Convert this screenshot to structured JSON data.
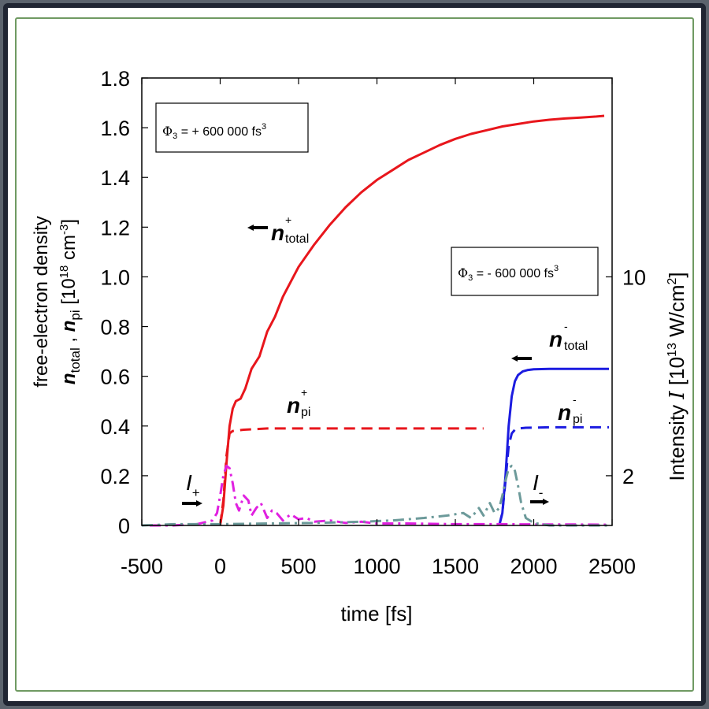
{
  "chart_data": {
    "type": "line",
    "xlabel": "time [fs]",
    "ylabel_left_lines": [
      "free-electron density",
      "n",
      "total",
      " , ",
      "n",
      "pi",
      " [10",
      "18",
      " cm",
      "-3",
      "]"
    ],
    "ylabel_right": [
      "Intensity  ",
      "I",
      "  [10",
      "13",
      " W/cm",
      "2",
      "]"
    ],
    "xlim": [
      -500,
      2500
    ],
    "ylim": [
      0,
      1.8
    ],
    "x_ticks": [
      -500,
      0,
      500,
      1000,
      1500,
      2000,
      2500
    ],
    "y_ticks": [
      0,
      0.2,
      0.4,
      0.6,
      0.8,
      1.0,
      1.2,
      1.4,
      1.6,
      1.8
    ],
    "y_tick_labels": [
      "0",
      "0.2",
      "0.4",
      "0.6",
      "0.8",
      "1.0",
      "1.2",
      "1.4",
      "1.6",
      "1.8"
    ],
    "right_axis_ticks": [
      {
        "label": "2",
        "y": 0.2
      },
      {
        "label": "10",
        "y": 1.0
      }
    ],
    "annotations": {
      "phi_plus": {
        "prefix": "Φ",
        "sub": "3",
        "text": " = + 600 000 fs",
        "sup": "3"
      },
      "phi_minus": {
        "prefix": "Φ",
        "sub": "3",
        "text": " = - 600 000 fs",
        "sup": "3"
      },
      "n_total_plus": {
        "base": "n",
        "sup": "+",
        "sub": "total"
      },
      "n_pi_plus": {
        "base": "n",
        "sup": "+",
        "sub": "pi"
      },
      "n_total_minus": {
        "base": "n",
        "sup": "-",
        "sub": "total"
      },
      "n_pi_minus": {
        "base": "n",
        "sup": "-",
        "sub": "pi"
      },
      "I_plus": {
        "base": "I",
        "sub": "+"
      },
      "I_minus": {
        "base": "I",
        "sub": "-"
      }
    },
    "series": [
      {
        "key": "n_total_plus",
        "color": "#e8161c",
        "style": "solid",
        "x": [
          0,
          20,
          40,
          60,
          80,
          100,
          130,
          160,
          200,
          250,
          300,
          350,
          400,
          450,
          500,
          600,
          700,
          800,
          900,
          1000,
          1100,
          1200,
          1300,
          1400,
          1500,
          1600,
          1700,
          1800,
          1900,
          2000,
          2100,
          2200,
          2300,
          2400,
          2450
        ],
        "y": [
          0,
          0.08,
          0.25,
          0.4,
          0.47,
          0.5,
          0.51,
          0.55,
          0.63,
          0.68,
          0.78,
          0.84,
          0.92,
          0.98,
          1.04,
          1.13,
          1.21,
          1.28,
          1.34,
          1.39,
          1.43,
          1.47,
          1.5,
          1.53,
          1.555,
          1.575,
          1.59,
          1.605,
          1.615,
          1.625,
          1.632,
          1.637,
          1.641,
          1.645,
          1.648
        ]
      },
      {
        "key": "n_pi_plus",
        "color": "#e8161c",
        "style": "dashed",
        "x": [
          0,
          20,
          40,
          60,
          80,
          150,
          300,
          500,
          1000,
          1500,
          1680
        ],
        "y": [
          0,
          0.1,
          0.28,
          0.37,
          0.38,
          0.385,
          0.39,
          0.39,
          0.39,
          0.39,
          0.39
        ]
      },
      {
        "key": "n_total_minus",
        "color": "#1c1ce0",
        "style": "solid",
        "x": [
          1780,
          1800,
          1820,
          1840,
          1860,
          1880,
          1900,
          1930,
          1960,
          2000,
          2100,
          2300,
          2480
        ],
        "y": [
          0,
          0.05,
          0.2,
          0.4,
          0.52,
          0.58,
          0.605,
          0.62,
          0.625,
          0.628,
          0.63,
          0.63,
          0.63
        ]
      },
      {
        "key": "n_pi_minus",
        "color": "#1c1ce0",
        "style": "dashed",
        "x": [
          1780,
          1800,
          1820,
          1840,
          1860,
          1880,
          1900,
          1950,
          2100,
          2300,
          2480
        ],
        "y": [
          0,
          0.05,
          0.18,
          0.32,
          0.37,
          0.385,
          0.39,
          0.393,
          0.395,
          0.395,
          0.395
        ]
      },
      {
        "key": "I_plus",
        "color": "#e020e0",
        "style": "dashdot",
        "x": [
          -450,
          -300,
          -150,
          -50,
          -20,
          0,
          20,
          40,
          60,
          80,
          100,
          120,
          150,
          180,
          200,
          230,
          260,
          300,
          330,
          360,
          400,
          450,
          500,
          550,
          600,
          700,
          800,
          900,
          1000,
          1200,
          1500,
          1800,
          2000,
          2200,
          2480
        ],
        "y": [
          0,
          0,
          0.005,
          0.02,
          0.05,
          0.12,
          0.2,
          0.24,
          0.23,
          0.17,
          0.09,
          0.06,
          0.12,
          0.1,
          0.04,
          0.07,
          0.09,
          0.03,
          0.06,
          0.05,
          0.02,
          0.045,
          0.025,
          0.03,
          0.015,
          0.02,
          0.01,
          0.015,
          0.008,
          0.008,
          0.005,
          0.005,
          0.004,
          0.004,
          0.003
        ]
      },
      {
        "key": "I_minus",
        "color": "#6c9a9a",
        "style": "dashdot",
        "x": [
          -500,
          -300,
          0,
          300,
          600,
          900,
          1100,
          1300,
          1450,
          1550,
          1600,
          1650,
          1680,
          1720,
          1750,
          1780,
          1800,
          1820,
          1840,
          1860,
          1880,
          1900,
          1920,
          1950,
          2000,
          2100,
          2300,
          2480
        ],
        "y": [
          0,
          0.005,
          0.005,
          0.008,
          0.01,
          0.015,
          0.02,
          0.03,
          0.04,
          0.05,
          0.03,
          0.07,
          0.04,
          0.09,
          0.05,
          0.07,
          0.12,
          0.18,
          0.23,
          0.24,
          0.22,
          0.16,
          0.09,
          0.03,
          0.01,
          0,
          0,
          0
        ]
      }
    ]
  }
}
